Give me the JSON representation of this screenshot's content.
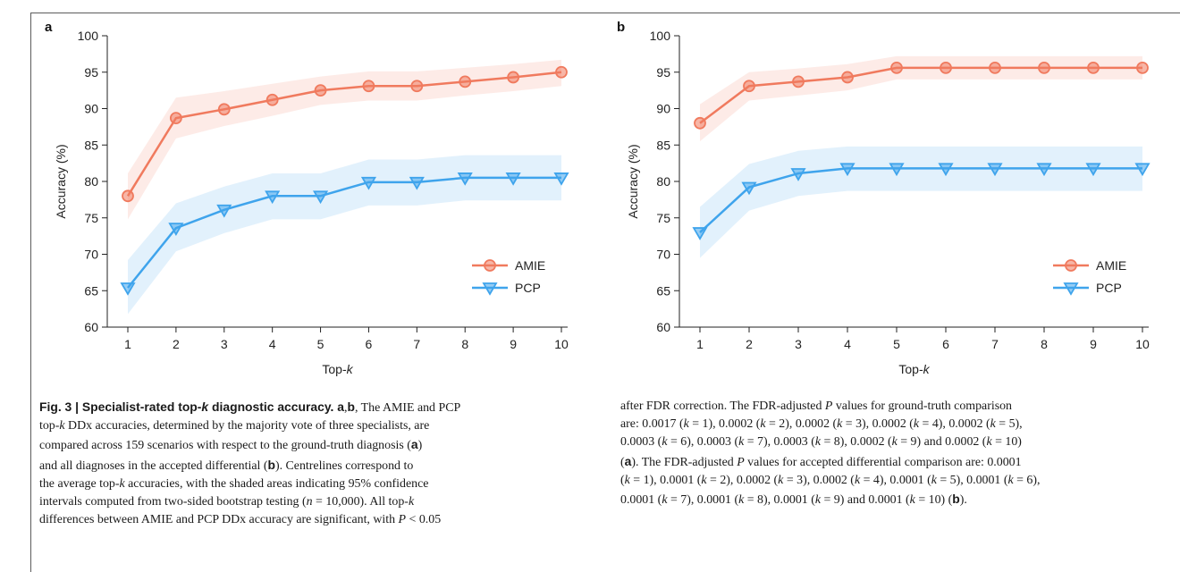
{
  "panels": {
    "a": {
      "letter": "a"
    },
    "b": {
      "letter": "b"
    }
  },
  "chart_data": [
    {
      "panel": "a",
      "type": "line",
      "xlabel": "Top-k",
      "ylabel": "Accuracy (%)",
      "x": [
        1,
        2,
        3,
        4,
        5,
        6,
        7,
        8,
        9,
        10
      ],
      "ylim": [
        60,
        100
      ],
      "yticks": [
        60,
        65,
        70,
        75,
        80,
        85,
        90,
        95,
        100
      ],
      "legend_position": "lower-right",
      "series": [
        {
          "name": "AMIE",
          "color": "#f07a5e",
          "marker": "circle",
          "values": [
            78.0,
            88.7,
            89.9,
            91.2,
            92.5,
            93.1,
            93.1,
            93.7,
            94.3,
            95.0
          ],
          "ci_lower": [
            74.8,
            85.9,
            87.6,
            89.0,
            90.5,
            91.1,
            91.1,
            91.8,
            92.4,
            93.1
          ],
          "ci_upper": [
            81.1,
            91.5,
            92.4,
            93.4,
            94.4,
            95.1,
            95.1,
            95.6,
            96.1,
            96.7
          ]
        },
        {
          "name": "PCP",
          "color": "#3fa4ec",
          "marker": "triangle-down",
          "values": [
            65.4,
            73.6,
            76.1,
            78.0,
            78.0,
            79.9,
            79.9,
            80.5,
            80.5,
            80.5
          ],
          "ci_lower": [
            61.8,
            70.4,
            72.9,
            74.8,
            74.8,
            76.7,
            76.7,
            77.4,
            77.4,
            77.4
          ],
          "ci_upper": [
            69.2,
            77.0,
            79.3,
            81.1,
            81.1,
            83.0,
            83.0,
            83.6,
            83.6,
            83.6
          ]
        }
      ]
    },
    {
      "panel": "b",
      "type": "line",
      "xlabel": "Top-k",
      "ylabel": "Accuracy (%)",
      "x": [
        1,
        2,
        3,
        4,
        5,
        6,
        7,
        8,
        9,
        10
      ],
      "ylim": [
        60,
        100
      ],
      "yticks": [
        60,
        65,
        70,
        75,
        80,
        85,
        90,
        95,
        100
      ],
      "legend_position": "lower-right",
      "series": [
        {
          "name": "AMIE",
          "color": "#f07a5e",
          "marker": "circle",
          "values": [
            88.0,
            93.1,
            93.7,
            94.3,
            95.6,
            95.6,
            95.6,
            95.6,
            95.6,
            95.6
          ],
          "ci_lower": [
            85.5,
            91.1,
            91.8,
            92.5,
            94.0,
            94.0,
            94.0,
            94.0,
            94.0,
            94.0
          ],
          "ci_upper": [
            90.6,
            95.0,
            95.5,
            96.1,
            97.2,
            97.2,
            97.2,
            97.2,
            97.2,
            97.2
          ]
        },
        {
          "name": "PCP",
          "color": "#3fa4ec",
          "marker": "triangle-down",
          "values": [
            73.0,
            79.2,
            81.1,
            81.8,
            81.8,
            81.8,
            81.8,
            81.8,
            81.8,
            81.8
          ],
          "ci_lower": [
            69.5,
            76.0,
            78.0,
            78.7,
            78.7,
            78.7,
            78.7,
            78.7,
            78.7,
            78.7
          ],
          "ci_upper": [
            76.5,
            82.4,
            84.2,
            84.8,
            84.8,
            84.8,
            84.8,
            84.8,
            84.8,
            84.8
          ]
        }
      ]
    }
  ],
  "caption": {
    "fig_label": "Fig. 3 | ",
    "title_pre": "Specialist-rated top-",
    "title_k": "k",
    "title_post": " diagnostic accuracy.",
    "s1": " a",
    "s2": ",",
    "s3": "b",
    "s4": ", The AMIE and PCP",
    "s5": "top-",
    "s6": "k",
    "s7": " DDx accuracies, determined by the majority vote of three specialists, are",
    "s8": "compared across 159 scenarios with respect to the ground-truth diagnosis (",
    "s9": "a",
    "s10": ")",
    "s11": "and all diagnoses in the accepted differential (",
    "s12": "b",
    "s13": "). Centrelines correspond to",
    "s14": "the average top-",
    "s15": "k",
    "s16": " accuracies, with the shaded areas indicating 95% confidence",
    "s17": "intervals computed from two-sided bootstrap testing (",
    "s18": "n",
    "s19": " = 10,000). All top-",
    "s20": "k",
    "s21": "differences between AMIE and PCP DDx accuracy are significant, with ",
    "s22": "P",
    "s23": " < 0.05",
    "r1": "after FDR correction. The FDR-adjusted ",
    "r2": "P",
    "r3": " values for ground-truth comparison",
    "r4": "are: 0.0017 (",
    "r5": "k",
    "r6": " = 1), 0.0002 (",
    "r7": "k",
    "r8": " = 2), 0.0002 (",
    "r9": "k",
    "r10": " = 3), 0.0002 (",
    "r11": "k",
    "r12": " = 4), 0.0002 (",
    "r13": "k",
    "r14": " = 5),",
    "r15": "0.0003 (",
    "r16": "k",
    "r17": " = 6), 0.0003 (",
    "r18": "k",
    "r19": " = 7), 0.0003 (",
    "r20": "k",
    "r21": " = 8), 0.0002 (",
    "r22": "k",
    "r23": " = 9) and 0.0002 (",
    "r24": "k",
    "r25": " = 10)",
    "r26": "(",
    "r27": "a",
    "r28": "). The FDR-adjusted ",
    "r29": "P",
    "r30": " values for accepted differential comparison are: 0.0001",
    "r31": "(",
    "r32": "k",
    "r33": " = 1), 0.0001 (",
    "r34": "k",
    "r35": " = 2), 0.0002 (",
    "r36": "k",
    "r37": " = 3), 0.0002 (",
    "r38": "k",
    "r39": " = 4), 0.0001 (",
    "r40": "k",
    "r41": " = 5), 0.0001 (",
    "r42": "k",
    "r43": " = 6),",
    "r44": "0.0001 (",
    "r45": "k",
    "r46": " = 7), 0.0001 (",
    "r47": "k",
    "r48": " = 8), 0.0001 (",
    "r49": "k",
    "r50": " = 9) and 0.0001 (",
    "r51": "k",
    "r52": " = 10) (",
    "r53": "b",
    "r54": ")."
  }
}
